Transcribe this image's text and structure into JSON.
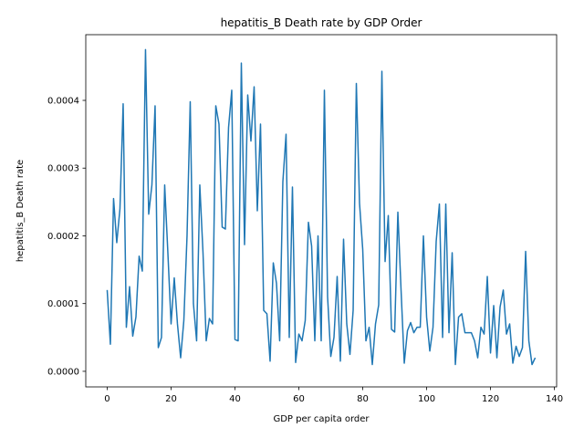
{
  "chart_data": {
    "type": "line",
    "title": "hepatitis_B Death rate by GDP Order",
    "xlabel": "GDP per capita order",
    "ylabel": "hepatitis_B Death rate",
    "xlim": [
      -6.7,
      140.7
    ],
    "ylim": [
      -2.3e-05,
      0.000497
    ],
    "xticks": [
      0,
      20,
      40,
      60,
      80,
      100,
      120,
      140
    ],
    "xtick_labels": [
      "0",
      "20",
      "40",
      "60",
      "80",
      "100",
      "120",
      "140"
    ],
    "yticks": [
      0.0,
      0.0001,
      0.0002,
      0.0003,
      0.0004
    ],
    "ytick_labels": [
      "0.0000",
      "0.0001",
      "0.0002",
      "0.0003",
      "0.0004"
    ],
    "grid": false,
    "line_color": "#1f77b4",
    "series": [
      {
        "x": [
          0,
          1,
          2,
          3,
          4,
          5,
          6,
          7,
          8,
          9,
          10,
          11,
          12,
          13,
          14,
          15,
          16,
          17,
          18,
          19,
          20,
          21,
          22,
          23,
          24,
          25,
          26,
          27,
          28,
          29,
          30,
          31,
          32,
          33,
          34,
          35,
          36,
          37,
          38,
          39,
          40,
          41,
          42,
          43,
          44,
          45,
          46,
          47,
          48,
          49,
          50,
          51,
          52,
          53,
          54,
          55,
          56,
          57,
          58,
          59,
          60,
          61,
          62,
          63,
          64,
          65,
          66,
          67,
          68,
          69,
          70,
          71,
          72,
          73,
          74,
          75,
          76,
          77,
          78,
          79,
          80,
          81,
          82,
          83,
          84,
          85,
          86,
          87,
          88,
          89,
          90,
          91,
          92,
          93,
          94,
          95,
          96,
          97,
          98,
          99,
          100,
          101,
          102,
          103,
          104,
          105,
          106,
          107,
          108,
          109,
          110,
          111,
          112,
          113,
          114,
          115,
          116,
          117,
          118,
          119,
          120,
          121,
          122,
          123,
          124,
          125,
          126,
          127,
          128,
          129,
          130,
          131,
          132,
          133,
          134
        ],
        "values": [
          0.00012,
          4e-05,
          0.000255,
          0.00019,
          0.00024,
          0.000395,
          6.5e-05,
          0.000125,
          5.2e-05,
          8e-05,
          0.00017,
          0.000148,
          0.000475,
          0.000232,
          0.000275,
          0.000392,
          3.5e-05,
          5e-05,
          0.000275,
          0.000175,
          7e-05,
          0.000138,
          7e-05,
          2e-05,
          7.5e-05,
          0.0002,
          0.000398,
          0.0001,
          4.5e-05,
          0.000275,
          0.000175,
          4.5e-05,
          7.8e-05,
          7e-05,
          0.000392,
          0.000365,
          0.000213,
          0.00021,
          0.00036,
          0.000415,
          4.7e-05,
          4.5e-05,
          0.000455,
          0.000187,
          0.000408,
          0.00034,
          0.00042,
          0.000237,
          0.000365,
          9e-05,
          8.5e-05,
          1.5e-05,
          0.00016,
          0.00013,
          4.5e-05,
          0.00028,
          0.00035,
          5e-05,
          0.000272,
          1.3e-05,
          5.5e-05,
          4.5e-05,
          7.5e-05,
          0.00022,
          0.000185,
          4.5e-05,
          0.0002,
          4.5e-05,
          0.000415,
          0.00011,
          2.2e-05,
          5e-05,
          0.00014,
          1.5e-05,
          0.000195,
          7e-05,
          2.5e-05,
          9e-05,
          0.000425,
          0.000248,
          0.00018,
          4.5e-05,
          6.5e-05,
          1e-05,
          7e-05,
          9.8e-05,
          0.000443,
          0.000162,
          0.00023,
          6.2e-05,
          5.8e-05,
          0.000235,
          0.00012,
          1.2e-05,
          6e-05,
          7.2e-05,
          5.7e-05,
          6.5e-05,
          6.5e-05,
          0.0002,
          8e-05,
          3e-05,
          6.5e-05,
          0.000192,
          0.000247,
          5e-05,
          0.000247,
          5.7e-05,
          0.000175,
          1e-05,
          8e-05,
          8.5e-05,
          5.7e-05,
          5.7e-05,
          5.7e-05,
          4.5e-05,
          2e-05,
          6.5e-05,
          5.5e-05,
          0.00014,
          2.7e-05,
          9.7e-05,
          2e-05,
          9.5e-05,
          0.00012,
          5.5e-05,
          7e-05,
          1.2e-05,
          3.7e-05,
          2.2e-05,
          3.5e-05,
          0.000177,
          4.5e-05,
          1e-05,
          2e-05
        ]
      }
    ]
  }
}
